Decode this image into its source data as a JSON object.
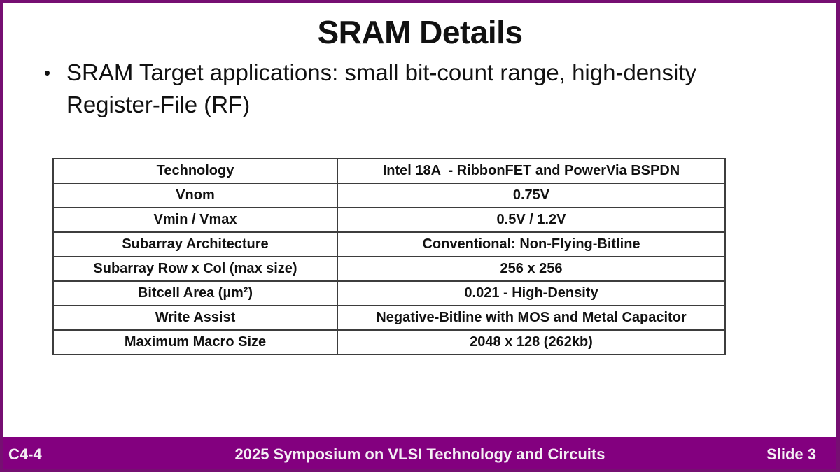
{
  "slide": {
    "title": "SRAM Details",
    "bullet_marker": "•",
    "bullet_text": "SRAM Target applications: small bit-count range, high-density Register-File (RF)"
  },
  "table": {
    "rows": [
      {
        "label": "Technology",
        "value": "Intel 18A  - RibbonFET and PowerVia BSPDN"
      },
      {
        "label": "Vnom",
        "value": "0.75V"
      },
      {
        "label": "Vmin / Vmax",
        "value": "0.5V / 1.2V"
      },
      {
        "label": "Subarray Architecture",
        "value": "Conventional: Non-Flying-Bitline"
      },
      {
        "label": "Subarray Row x Col (max size)",
        "value": "256 x 256"
      },
      {
        "label": "Bitcell Area (µm²)",
        "value": "0.021 - High-Density"
      },
      {
        "label": "Write Assist",
        "value": "Negative-Bitline with MOS and Metal Capacitor"
      },
      {
        "label": "Maximum Macro Size",
        "value": "2048 x 128 (262kb)"
      }
    ]
  },
  "footer": {
    "paper_id": "C4-4",
    "conference": "2025 Symposium on VLSI Technology and Circuits",
    "slide_number": "Slide 3"
  },
  "colors": {
    "border": "#760f72",
    "footer_bg": "#83007f",
    "footer_text": "#f4eef4",
    "table_border": "#3d3d3d",
    "text": "#111111"
  }
}
